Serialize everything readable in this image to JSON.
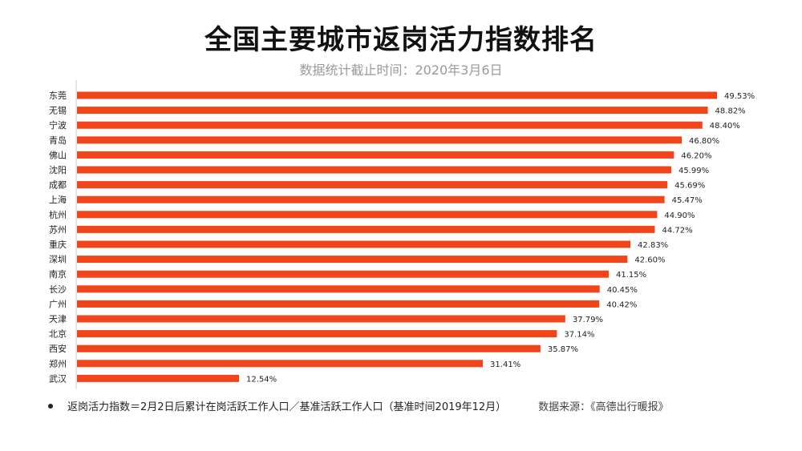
{
  "title": "全国主要城市返岗活力指数排名",
  "subtitle": "数据统计截止时间：2020年3月6日",
  "chart_data": {
    "type": "bar",
    "orientation": "horizontal",
    "categories": [
      "东莞",
      "无锡",
      "宁波",
      "青岛",
      "佛山",
      "沈阳",
      "成都",
      "上海",
      "杭州",
      "苏州",
      "重庆",
      "深圳",
      "南京",
      "长沙",
      "广州",
      "天津",
      "北京",
      "西安",
      "郑州",
      "武汉"
    ],
    "values": [
      49.53,
      48.82,
      48.4,
      46.8,
      46.2,
      45.99,
      45.69,
      45.47,
      44.9,
      44.72,
      42.83,
      42.6,
      41.15,
      40.45,
      40.42,
      37.79,
      37.14,
      35.87,
      31.41,
      12.54
    ],
    "value_labels": [
      "49.53%",
      "48.82%",
      "48.40%",
      "46.80%",
      "46.20%",
      "45.99%",
      "45.69%",
      "45.47%",
      "44.90%",
      "44.72%",
      "42.83%",
      "42.60%",
      "41.15%",
      "40.45%",
      "40.42%",
      "37.79%",
      "37.14%",
      "35.87%",
      "31.41%",
      "12.54%"
    ],
    "xlim": [
      0,
      49.53
    ],
    "bar_color": "#f0441a",
    "axis_color": "#cccccc",
    "grid": false
  },
  "footer": {
    "note": "返岗活力指数＝2月2日后累计在岗活跃工作人口／基准活跃工作人口（基准时间2019年12月）",
    "source": "数据来源：《高德出行暖报》"
  }
}
